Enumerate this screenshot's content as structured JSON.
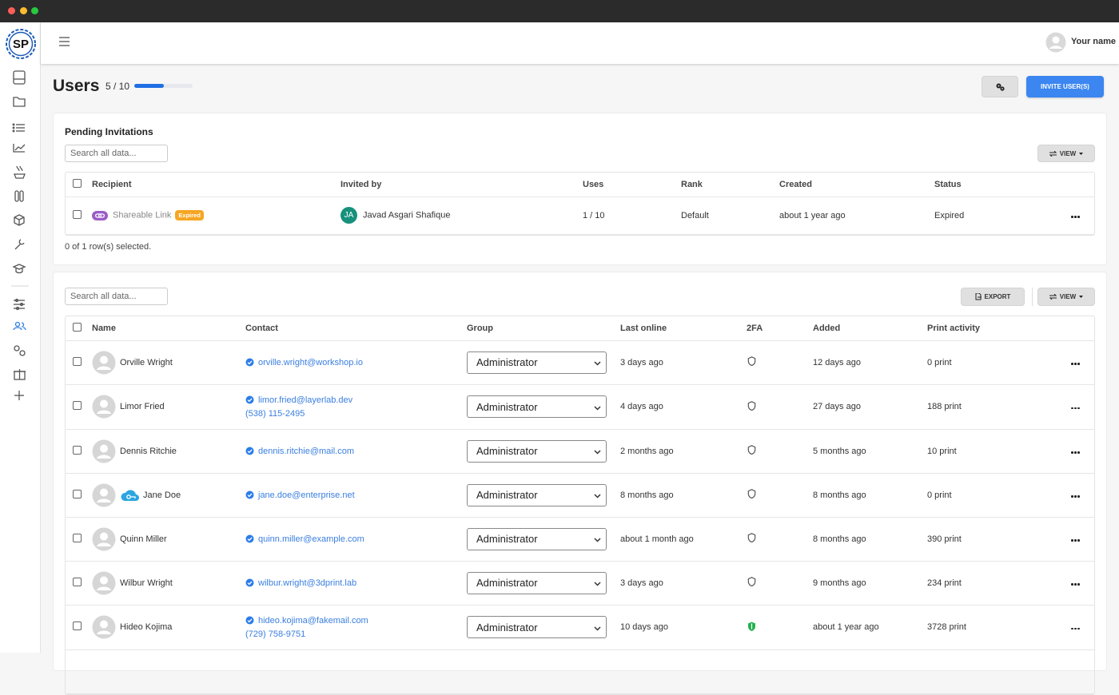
{
  "app": {
    "logo": "SP",
    "user_name": "Your name"
  },
  "page": {
    "title": "Users",
    "quota": {
      "label": "5 / 10",
      "used": 5,
      "limit": 10
    },
    "invite_button": "INVITE USER(S)"
  },
  "pending": {
    "title": "Pending Invitations",
    "search_placeholder": "Search all data...",
    "view_button": "VIEW",
    "columns": [
      "Recipient",
      "Invited by",
      "Uses",
      "Rank",
      "Created",
      "Status"
    ],
    "rows": [
      {
        "recipient": "Shareable Link",
        "badge": "Expired",
        "inviter_initials": "JA",
        "invited_by": "Javad Asgari Shafique",
        "uses": "1 / 10",
        "rank": "Default",
        "created": "about 1 year ago",
        "status": "Expired"
      }
    ],
    "selection": "0 of 1 row(s) selected."
  },
  "users": {
    "search_placeholder": "Search all data...",
    "export_button": "EXPORT",
    "view_button": "VIEW",
    "columns": [
      "Name",
      "Contact",
      "Group",
      "Last online",
      "2FA",
      "Added",
      "Print activity"
    ],
    "rows": [
      {
        "name": "Orville Wright",
        "email": "orville.wright@workshop.io",
        "group": "Administrator",
        "last_online": "3 days ago",
        "twofa": false,
        "added": "12 days ago",
        "print": "0 print"
      },
      {
        "name": "Limor Fried",
        "email": "limor.fried@layerlab.dev",
        "phone": "(538) 115-2495",
        "group": "Administrator",
        "last_online": "4 days ago",
        "twofa": false,
        "added": "27 days ago",
        "print": "188 print"
      },
      {
        "name": "Dennis Ritchie",
        "email": "dennis.ritchie@mail.com",
        "group": "Administrator",
        "last_online": "2 months ago",
        "twofa": false,
        "added": "5 months ago",
        "print": "10 print"
      },
      {
        "name": "Jane Doe",
        "sso_icon": true,
        "email": "jane.doe@enterprise.net",
        "group": "Administrator",
        "last_online": "8 months ago",
        "twofa": false,
        "added": "8 months ago",
        "print": "0 print"
      },
      {
        "name": "Quinn Miller",
        "email": "quinn.miller@example.com",
        "group": "Administrator",
        "last_online": "about 1 month ago",
        "twofa": false,
        "added": "8 months ago",
        "print": "390 print"
      },
      {
        "name": "Wilbur Wright",
        "email": "wilbur.wright@3dprint.lab",
        "group": "Administrator",
        "last_online": "3 days ago",
        "twofa": false,
        "added": "9 months ago",
        "print": "234 print"
      },
      {
        "name": "Hideo Kojima",
        "email": "hideo.kojima@fakemail.com",
        "phone": "(729) 758-9751",
        "group": "Administrator",
        "last_online": "10 days ago",
        "twofa": true,
        "added": "about 1 year ago",
        "print": "3728 print"
      }
    ]
  }
}
